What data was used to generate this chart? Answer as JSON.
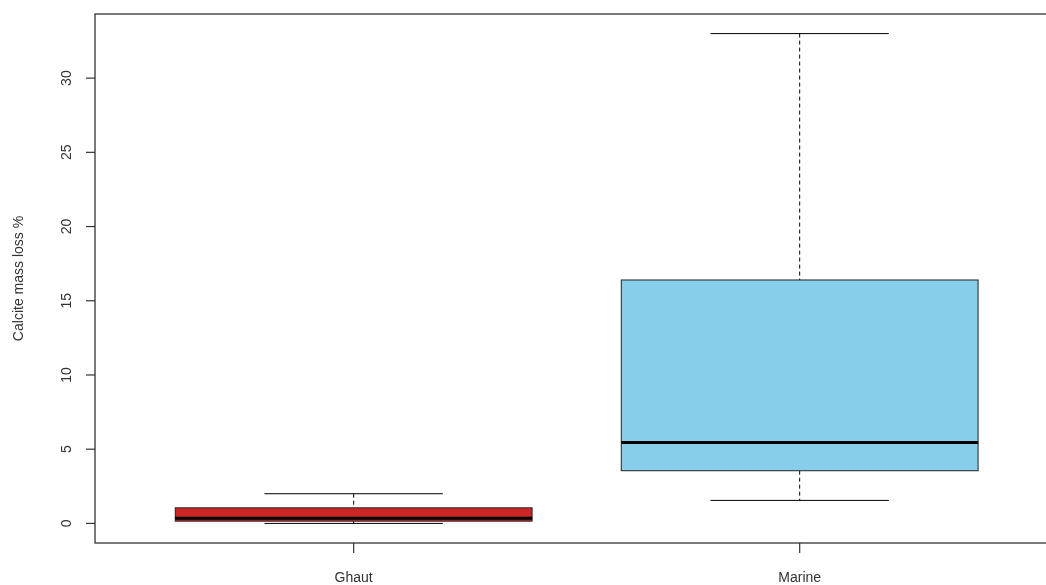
{
  "chart_data": {
    "type": "box",
    "ylabel": "Calcite mass loss %",
    "categories": [
      "Ghaut",
      "Marine"
    ],
    "colors": [
      "#cd2626",
      "#87ceeb"
    ],
    "boxes": [
      {
        "low": 0,
        "q1": 0.15,
        "median": 0.35,
        "q3": 1.05,
        "high": 2
      },
      {
        "low": 1.55,
        "q1": 3.55,
        "median": 5.45,
        "q3": 16.4,
        "high": 33
      }
    ],
    "ylim": [
      -1.32,
      34.32
    ],
    "yticks": [
      0,
      5,
      10,
      15,
      20,
      25,
      30
    ]
  }
}
